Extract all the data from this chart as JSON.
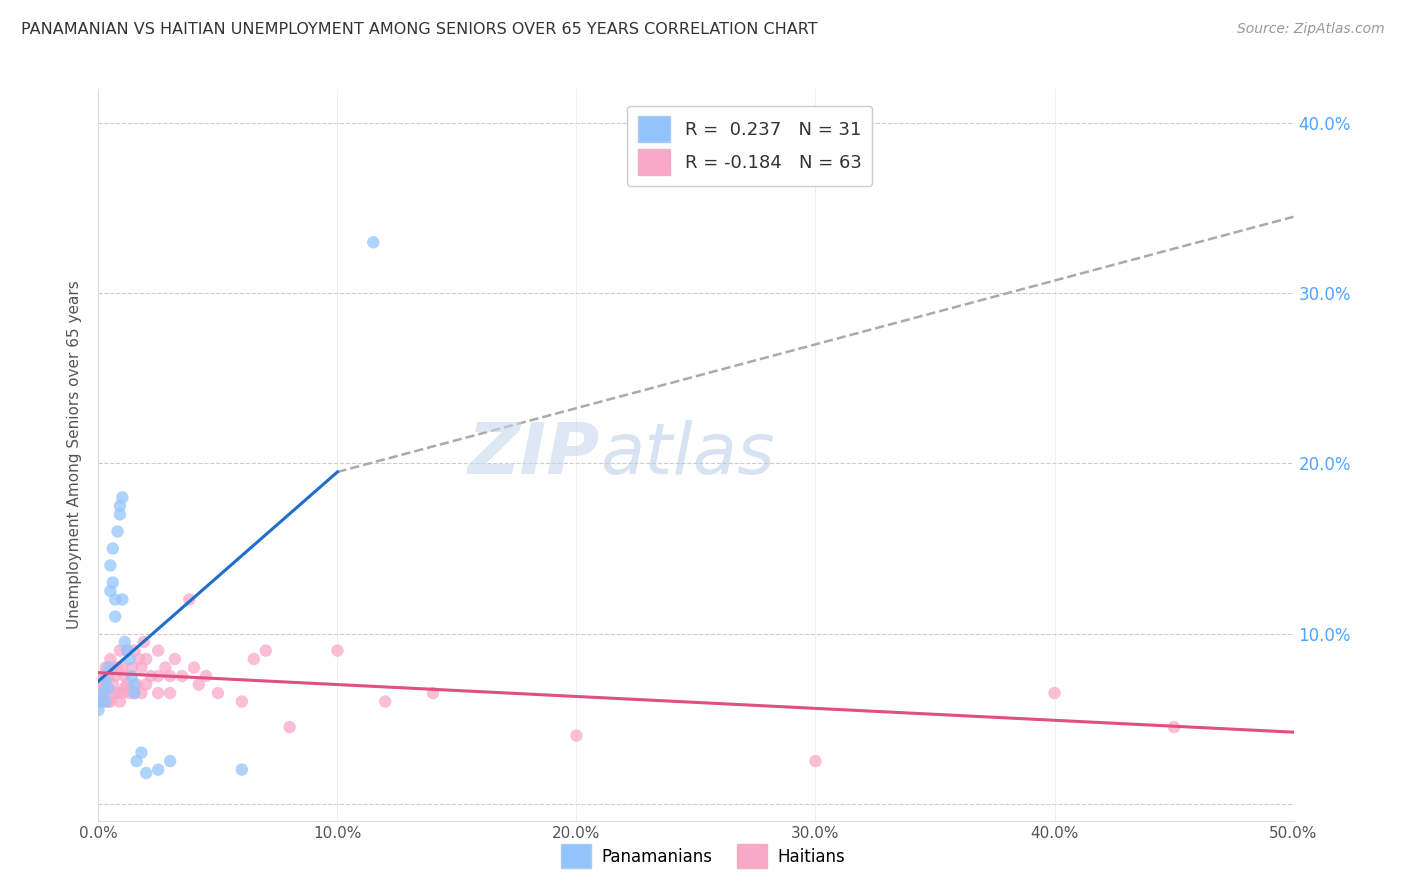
{
  "title": "PANAMANIAN VS HAITIAN UNEMPLOYMENT AMONG SENIORS OVER 65 YEARS CORRELATION CHART",
  "source": "Source: ZipAtlas.com",
  "ylabel": "Unemployment Among Seniors over 65 years",
  "xlim": [
    0.0,
    0.5
  ],
  "ylim": [
    -0.01,
    0.42
  ],
  "panamanian_color": "#93c5fd",
  "haitian_color": "#f9a8c9",
  "panamanian_line_color": "#1e6fcc",
  "haitian_line_color": "#e05080",
  "dashed_line_color": "#aaaaaa",
  "panamanian_R": 0.237,
  "panamanian_N": 31,
  "haitian_R": -0.184,
  "haitian_N": 63,
  "watermark_zip": "ZIP",
  "watermark_atlas": "atlas",
  "background_color": "#ffffff",
  "grid_color": "#cccccc",
  "title_color": "#333333",
  "axis_label_color": "#555555",
  "right_tick_color": "#4da6ff",
  "pan_line_x0": 0.0,
  "pan_line_y0": 0.072,
  "pan_line_x1": 0.1,
  "pan_line_y1": 0.195,
  "dash_line_x0": 0.1,
  "dash_line_y0": 0.195,
  "dash_line_x1": 0.5,
  "dash_line_y1": 0.345,
  "hai_line_x0": 0.0,
  "hai_line_y0": 0.077,
  "hai_line_x1": 0.5,
  "hai_line_y1": 0.042,
  "pan_scatter_x": [
    0.0,
    0.0,
    0.002,
    0.003,
    0.003,
    0.004,
    0.004,
    0.005,
    0.005,
    0.006,
    0.006,
    0.007,
    0.007,
    0.008,
    0.009,
    0.009,
    0.01,
    0.01,
    0.011,
    0.012,
    0.013,
    0.014,
    0.015,
    0.015,
    0.016,
    0.018,
    0.02,
    0.025,
    0.03,
    0.06,
    0.115
  ],
  "pan_scatter_y": [
    0.06,
    0.055,
    0.065,
    0.06,
    0.072,
    0.068,
    0.08,
    0.125,
    0.14,
    0.13,
    0.15,
    0.11,
    0.12,
    0.16,
    0.17,
    0.175,
    0.18,
    0.12,
    0.095,
    0.09,
    0.085,
    0.075,
    0.07,
    0.065,
    0.025,
    0.03,
    0.018,
    0.02,
    0.025,
    0.02,
    0.33
  ],
  "hai_scatter_x": [
    0.0,
    0.0,
    0.001,
    0.001,
    0.002,
    0.002,
    0.002,
    0.003,
    0.003,
    0.004,
    0.004,
    0.005,
    0.005,
    0.006,
    0.006,
    0.007,
    0.007,
    0.008,
    0.008,
    0.009,
    0.009,
    0.01,
    0.01,
    0.011,
    0.011,
    0.012,
    0.012,
    0.013,
    0.014,
    0.015,
    0.015,
    0.016,
    0.017,
    0.018,
    0.018,
    0.019,
    0.02,
    0.02,
    0.022,
    0.025,
    0.025,
    0.025,
    0.028,
    0.03,
    0.03,
    0.032,
    0.035,
    0.038,
    0.04,
    0.042,
    0.045,
    0.05,
    0.06,
    0.065,
    0.07,
    0.08,
    0.1,
    0.12,
    0.14,
    0.2,
    0.3,
    0.4,
    0.45
  ],
  "hai_scatter_y": [
    0.06,
    0.072,
    0.065,
    0.07,
    0.06,
    0.068,
    0.075,
    0.065,
    0.08,
    0.06,
    0.075,
    0.06,
    0.085,
    0.07,
    0.08,
    0.065,
    0.075,
    0.065,
    0.08,
    0.06,
    0.09,
    0.065,
    0.08,
    0.068,
    0.075,
    0.07,
    0.09,
    0.065,
    0.08,
    0.065,
    0.09,
    0.07,
    0.085,
    0.065,
    0.08,
    0.095,
    0.07,
    0.085,
    0.075,
    0.065,
    0.075,
    0.09,
    0.08,
    0.065,
    0.075,
    0.085,
    0.075,
    0.12,
    0.08,
    0.07,
    0.075,
    0.065,
    0.06,
    0.085,
    0.09,
    0.045,
    0.09,
    0.06,
    0.065,
    0.04,
    0.025,
    0.065,
    0.045
  ]
}
